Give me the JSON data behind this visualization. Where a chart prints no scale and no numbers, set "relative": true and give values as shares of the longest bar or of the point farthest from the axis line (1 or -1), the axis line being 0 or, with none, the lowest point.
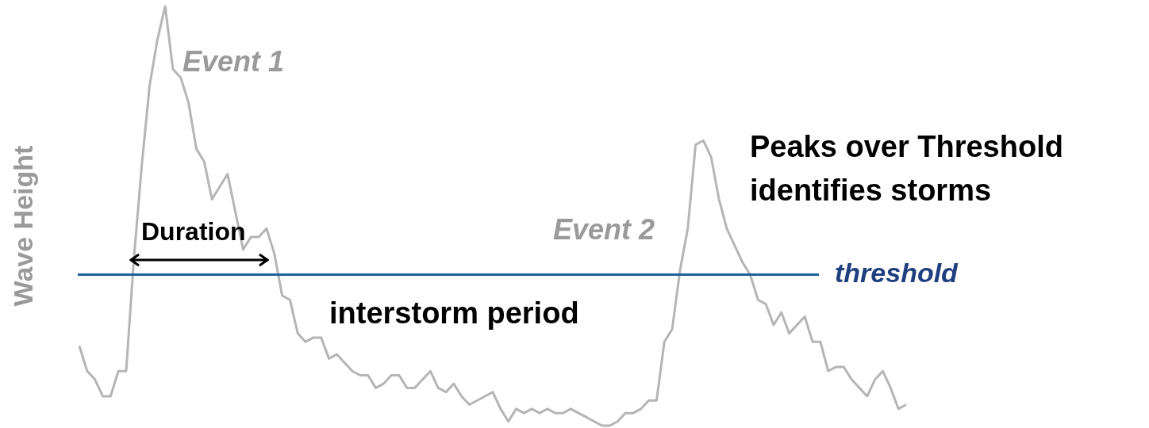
{
  "chart_data": {
    "type": "line",
    "relative": true,
    "ylabel": "Wave Height",
    "color": "#b5b5b5",
    "categories": [
      null,
      null,
      null,
      null,
      null,
      null,
      null,
      null,
      null,
      null,
      null,
      null,
      null,
      null,
      null,
      null,
      null,
      null,
      null,
      null,
      null,
      null,
      null,
      null,
      null,
      null,
      null,
      null,
      null,
      null,
      null,
      null,
      null,
      null,
      null,
      null,
      null,
      null,
      null,
      null,
      null,
      null,
      null,
      null,
      null,
      null,
      null,
      null,
      null,
      null,
      null,
      null,
      null,
      null,
      null,
      null,
      null,
      null,
      null,
      null,
      null,
      null,
      null,
      null,
      null,
      null,
      null,
      null,
      null,
      null,
      null,
      null,
      null,
      null,
      null,
      null,
      null,
      null,
      null,
      null,
      null,
      null,
      null,
      null,
      null,
      null,
      null,
      null,
      null,
      null,
      null,
      null,
      null,
      null,
      null,
      null,
      null,
      null,
      null,
      null,
      null,
      null,
      null,
      null,
      null,
      null,
      null
    ],
    "values": [
      0.19,
      0.13,
      0.11,
      0.07,
      0.07,
      0.13,
      0.13,
      0.4,
      0.62,
      0.81,
      0.92,
      1.0,
      0.85,
      0.83,
      0.77,
      0.66,
      0.63,
      0.54,
      0.57,
      0.6,
      0.51,
      0.42,
      0.45,
      0.45,
      0.47,
      0.41,
      0.31,
      0.3,
      0.22,
      0.2,
      0.21,
      0.21,
      0.16,
      0.17,
      0.15,
      0.13,
      0.12,
      0.12,
      0.09,
      0.1,
      0.12,
      0.12,
      0.09,
      0.09,
      0.11,
      0.13,
      0.09,
      0.08,
      0.1,
      0.07,
      0.05,
      0.06,
      0.07,
      0.08,
      0.04,
      0.01,
      0.04,
      0.03,
      0.04,
      0.03,
      0.04,
      0.03,
      0.03,
      0.04,
      0.03,
      0.02,
      0.01,
      0.0,
      0.0,
      0.01,
      0.03,
      0.03,
      0.04,
      0.06,
      0.06,
      0.2,
      0.23,
      0.37,
      0.47,
      0.67,
      0.68,
      0.64,
      0.54,
      0.47,
      0.43,
      0.39,
      0.36,
      0.3,
      0.29,
      0.24,
      0.27,
      0.22,
      0.24,
      0.26,
      0.2,
      0.2,
      0.13,
      0.14,
      0.14,
      0.11,
      0.09,
      0.07,
      0.11,
      0.13,
      0.09,
      0.04,
      0.05
    ],
    "ref_lines": [
      {
        "axis": "y",
        "value": 0.36,
        "label": "threshold",
        "color": "#1f5f9e"
      }
    ],
    "annotations": [
      "Event 1",
      "Event 2",
      "Duration",
      "interstorm period",
      "Peaks over Threshold identifies storms"
    ]
  }
}
